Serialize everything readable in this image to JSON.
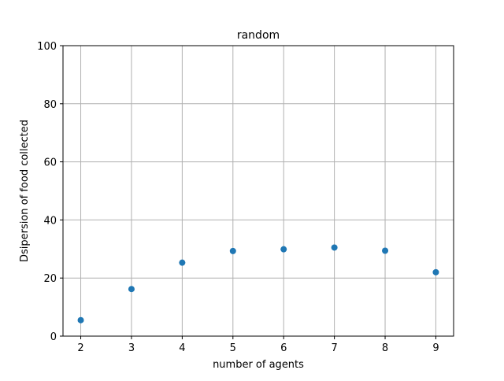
{
  "chart_data": {
    "type": "scatter",
    "title": "random",
    "xlabel": "number of agents",
    "ylabel": "Dsipersion of food collected",
    "x": [
      2,
      3,
      4,
      5,
      6,
      7,
      8,
      9
    ],
    "y": [
      5.5,
      16.2,
      25.3,
      29.3,
      29.9,
      30.5,
      29.4,
      22.0
    ],
    "x_ticks": [
      2,
      3,
      4,
      5,
      6,
      7,
      8,
      9
    ],
    "y_ticks": [
      0,
      20,
      40,
      60,
      80,
      100
    ],
    "xlim": [
      1.65,
      9.35
    ],
    "ylim": [
      0,
      100
    ],
    "grid": true,
    "marker_color": "#1f77b4",
    "grid_color": "#b0b0b0"
  }
}
